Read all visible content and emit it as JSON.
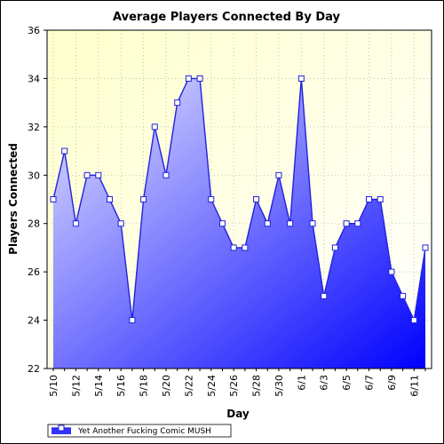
{
  "chart_data": {
    "type": "area",
    "title": "Average Players Connected By Day",
    "xlabel": "Day",
    "ylabel": "Players Connected",
    "ylim": [
      22,
      36
    ],
    "yticks": [
      22,
      24,
      26,
      28,
      30,
      32,
      34,
      36
    ],
    "x_tick_labels": [
      "5/10",
      "5/12",
      "5/14",
      "5/16",
      "5/18",
      "5/20",
      "5/22",
      "5/24",
      "5/26",
      "5/28",
      "5/30",
      "6/1",
      "6/3",
      "6/5",
      "6/7",
      "6/9",
      "6/11"
    ],
    "categories": [
      "5/10",
      "5/11",
      "5/12",
      "5/13",
      "5/14",
      "5/15",
      "5/16",
      "5/17",
      "5/18",
      "5/19",
      "5/20",
      "5/21",
      "5/22",
      "5/23",
      "5/24",
      "5/25",
      "5/26",
      "5/27",
      "5/28",
      "5/29",
      "5/30",
      "5/31",
      "6/1",
      "6/2",
      "6/3",
      "6/4",
      "6/5",
      "6/6",
      "6/7",
      "6/8",
      "6/9",
      "6/10",
      "6/11",
      "6/12"
    ],
    "series": [
      {
        "name": "Yet Another Fucking Comic MUSH",
        "values": [
          29,
          31,
          28,
          30,
          30,
          29,
          28,
          24,
          29,
          32,
          30,
          33,
          34,
          34,
          29,
          28,
          27,
          27,
          29,
          28,
          30,
          28,
          34,
          28,
          25,
          27,
          28,
          28,
          29,
          29,
          26,
          25,
          24,
          27
        ]
      }
    ],
    "grid": true,
    "legend_position": "bottom-left",
    "colors": {
      "line": "#2222dd",
      "fill_light": "#d4d4ff",
      "fill_dark": "#0000ff",
      "plot_bg": "#ffffe0",
      "marker_fill": "#ffffff"
    }
  }
}
